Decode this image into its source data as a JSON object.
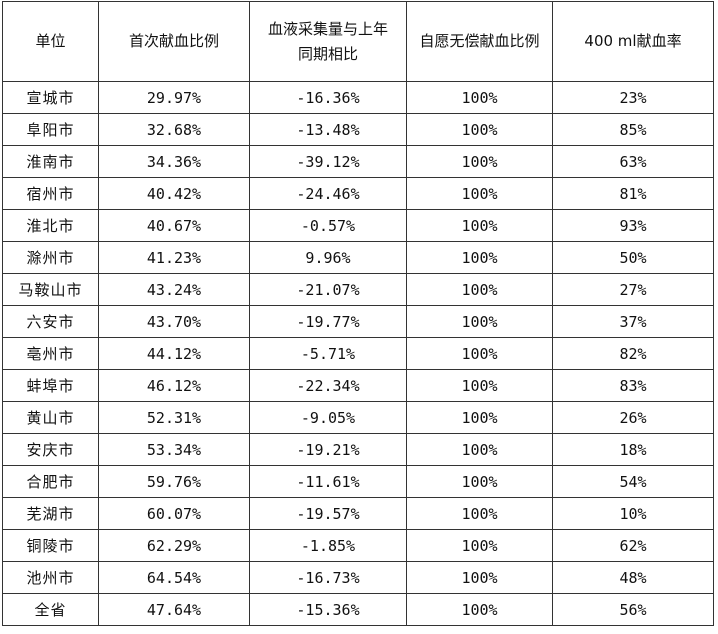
{
  "table": {
    "headers": [
      "单位",
      "首次献血比例",
      "血液采集量与上年同期相比",
      "自愿无偿献血比例",
      "400 ml献血率"
    ],
    "rows": [
      [
        "宣城市",
        "29.97%",
        "-16.36%",
        "100%",
        "23%"
      ],
      [
        "阜阳市",
        "32.68%",
        "-13.48%",
        "100%",
        "85%"
      ],
      [
        "淮南市",
        "34.36%",
        "-39.12%",
        "100%",
        "63%"
      ],
      [
        "宿州市",
        "40.42%",
        "-24.46%",
        "100%",
        "81%"
      ],
      [
        "淮北市",
        "40.67%",
        "-0.57%",
        "100%",
        "93%"
      ],
      [
        "滁州市",
        "41.23%",
        "9.96%",
        "100%",
        "50%"
      ],
      [
        "马鞍山市",
        "43.24%",
        "-21.07%",
        "100%",
        "27%"
      ],
      [
        "六安市",
        "43.70%",
        "-19.77%",
        "100%",
        "37%"
      ],
      [
        "亳州市",
        "44.12%",
        "-5.71%",
        "100%",
        "82%"
      ],
      [
        "蚌埠市",
        "46.12%",
        "-22.34%",
        "100%",
        "83%"
      ],
      [
        "黄山市",
        "52.31%",
        "-9.05%",
        "100%",
        "26%"
      ],
      [
        "安庆市",
        "53.34%",
        "-19.21%",
        "100%",
        "18%"
      ],
      [
        "合肥市",
        "59.76%",
        "-11.61%",
        "100%",
        "54%"
      ],
      [
        "芜湖市",
        "60.07%",
        "-19.57%",
        "100%",
        "10%"
      ],
      [
        "铜陵市",
        "62.29%",
        "-1.85%",
        "100%",
        "62%"
      ],
      [
        "池州市",
        "64.54%",
        "-16.73%",
        "100%",
        "48%"
      ],
      [
        "全省",
        "47.64%",
        "-15.36%",
        "100%",
        "56%"
      ]
    ]
  }
}
